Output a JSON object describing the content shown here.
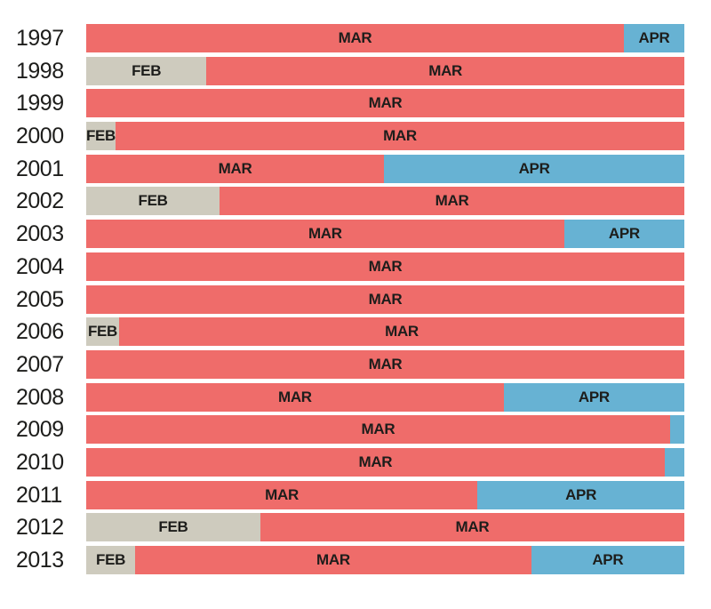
{
  "page": {
    "background": "#ffffff"
  },
  "chart_data": {
    "type": "bar",
    "subtype": "horizontal_stacked_timeline",
    "orientation": "horizontal",
    "title": "",
    "xlabel": "",
    "ylabel": "",
    "grid": false,
    "legend_position": "none",
    "text_color": "#1d1d1b",
    "categories": [
      "1997",
      "1998",
      "1999",
      "2000",
      "2001",
      "2002",
      "2003",
      "2004",
      "2005",
      "2006",
      "2007",
      "2008",
      "2009",
      "2010",
      "2011",
      "2012",
      "2013"
    ],
    "months": {
      "FEB": {
        "label": "FEB",
        "color": "#cecbbe"
      },
      "MAR": {
        "label": "MAR",
        "color": "#ef6c6a"
      },
      "APR": {
        "label": "APR",
        "color": "#67b2d3"
      }
    },
    "rows": [
      {
        "year": "1997",
        "segments": [
          {
            "month": "MAR",
            "pct": 89.9,
            "show_label": true
          },
          {
            "month": "APR",
            "pct": 10.1,
            "show_label": true
          }
        ]
      },
      {
        "year": "1998",
        "segments": [
          {
            "month": "FEB",
            "pct": 20.1,
            "show_label": true
          },
          {
            "month": "MAR",
            "pct": 79.9,
            "show_label": true
          }
        ]
      },
      {
        "year": "1999",
        "segments": [
          {
            "month": "MAR",
            "pct": 100,
            "show_label": true
          }
        ]
      },
      {
        "year": "2000",
        "segments": [
          {
            "month": "FEB",
            "pct": 4.9,
            "show_label": true
          },
          {
            "month": "MAR",
            "pct": 95.1,
            "show_label": true
          }
        ]
      },
      {
        "year": "2001",
        "segments": [
          {
            "month": "MAR",
            "pct": 49.8,
            "show_label": true
          },
          {
            "month": "APR",
            "pct": 50.2,
            "show_label": true
          }
        ]
      },
      {
        "year": "2002",
        "segments": [
          {
            "month": "FEB",
            "pct": 22.3,
            "show_label": true
          },
          {
            "month": "MAR",
            "pct": 77.7,
            "show_label": true
          }
        ]
      },
      {
        "year": "2003",
        "segments": [
          {
            "month": "MAR",
            "pct": 79.9,
            "show_label": true
          },
          {
            "month": "APR",
            "pct": 20.1,
            "show_label": true
          }
        ]
      },
      {
        "year": "2004",
        "segments": [
          {
            "month": "MAR",
            "pct": 100,
            "show_label": true
          }
        ]
      },
      {
        "year": "2005",
        "segments": [
          {
            "month": "MAR",
            "pct": 100,
            "show_label": true
          }
        ]
      },
      {
        "year": "2006",
        "segments": [
          {
            "month": "FEB",
            "pct": 5.5,
            "show_label": true
          },
          {
            "month": "MAR",
            "pct": 94.5,
            "show_label": true
          }
        ]
      },
      {
        "year": "2007",
        "segments": [
          {
            "month": "MAR",
            "pct": 100,
            "show_label": true
          }
        ]
      },
      {
        "year": "2008",
        "segments": [
          {
            "month": "MAR",
            "pct": 69.8,
            "show_label": true
          },
          {
            "month": "APR",
            "pct": 30.2,
            "show_label": true
          }
        ]
      },
      {
        "year": "2009",
        "segments": [
          {
            "month": "MAR",
            "pct": 97.6,
            "show_label": true
          },
          {
            "month": "APR",
            "pct": 2.4,
            "show_label": false
          }
        ]
      },
      {
        "year": "2010",
        "segments": [
          {
            "month": "MAR",
            "pct": 96.7,
            "show_label": true
          },
          {
            "month": "APR",
            "pct": 3.3,
            "show_label": false
          }
        ]
      },
      {
        "year": "2011",
        "segments": [
          {
            "month": "MAR",
            "pct": 65.4,
            "show_label": true
          },
          {
            "month": "APR",
            "pct": 34.6,
            "show_label": true
          }
        ]
      },
      {
        "year": "2012",
        "segments": [
          {
            "month": "FEB",
            "pct": 29.1,
            "show_label": true
          },
          {
            "month": "MAR",
            "pct": 70.9,
            "show_label": true
          }
        ]
      },
      {
        "year": "2013",
        "segments": [
          {
            "month": "FEB",
            "pct": 8.2,
            "show_label": true
          },
          {
            "month": "MAR",
            "pct": 66.2,
            "show_label": true
          },
          {
            "month": "APR",
            "pct": 25.6,
            "show_label": true
          }
        ]
      }
    ]
  }
}
